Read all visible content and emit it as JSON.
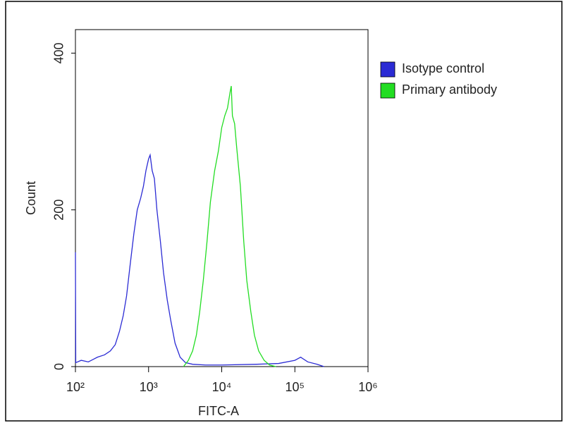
{
  "chart_data": {
    "type": "line",
    "xlabel": "FITC-A",
    "ylabel": "Count",
    "xscale": "log",
    "xlim": [
      100,
      1000000
    ],
    "ylim": [
      0,
      430
    ],
    "xticks": [
      {
        "value": 100,
        "label": "10²"
      },
      {
        "value": 1000,
        "label": "10³"
      },
      {
        "value": 10000,
        "label": "10⁴"
      },
      {
        "value": 100000,
        "label": "10⁵"
      },
      {
        "value": 1000000,
        "label": "10⁶"
      }
    ],
    "yticks": [
      0,
      200,
      400
    ],
    "legend": "right",
    "series": [
      {
        "name": "Isotype control",
        "color": "#2b2bd4",
        "x": [
          100,
          101,
          120,
          150,
          200,
          250,
          300,
          350,
          400,
          450,
          500,
          560,
          630,
          700,
          780,
          850,
          920,
          1000,
          1050,
          1120,
          1200,
          1300,
          1450,
          1600,
          1800,
          2000,
          2300,
          2700,
          3200,
          4000,
          6000,
          10000,
          30000,
          60000,
          100000,
          120000,
          150000,
          200000,
          250000
        ],
        "values": [
          146,
          5,
          8,
          6,
          12,
          15,
          20,
          28,
          45,
          65,
          90,
          130,
          170,
          200,
          215,
          230,
          250,
          265,
          270,
          250,
          240,
          200,
          160,
          120,
          85,
          60,
          30,
          12,
          5,
          3,
          2,
          2,
          3,
          4,
          8,
          12,
          6,
          3,
          0
        ]
      },
      {
        "name": "Primary antibody",
        "color": "#22dd22",
        "x": [
          3000,
          3500,
          4000,
          4500,
          5000,
          5600,
          6300,
          7000,
          8000,
          9000,
          10000,
          11000,
          12000,
          13000,
          13500,
          14000,
          15000,
          16000,
          18000,
          20000,
          22000,
          25000,
          28000,
          32000,
          38000,
          45000,
          55000
        ],
        "values": [
          0,
          8,
          20,
          40,
          70,
          110,
          160,
          210,
          250,
          275,
          305,
          320,
          330,
          350,
          358,
          320,
          310,
          280,
          230,
          160,
          110,
          70,
          40,
          20,
          8,
          2,
          0
        ]
      }
    ]
  }
}
